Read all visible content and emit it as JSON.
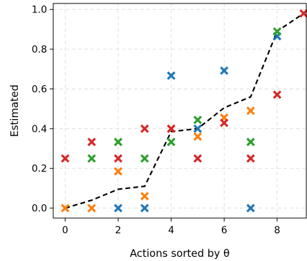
{
  "chart_data": {
    "type": "scatter",
    "title": "",
    "xlabel": "Actions sorted by θ",
    "ylabel": "Estimated",
    "xlim": [
      -0.45,
      9.1
    ],
    "ylim": [
      -0.05,
      1.03
    ],
    "xticks": [
      0,
      2,
      4,
      6,
      8
    ],
    "yticks": [
      0.0,
      0.2,
      0.4,
      0.6,
      0.8,
      1.0
    ],
    "xtick_labels": [
      "0",
      "2",
      "4",
      "6",
      "8"
    ],
    "ytick_labels": [
      "0.0",
      "0.2",
      "0.4",
      "0.6",
      "0.8",
      "1.0"
    ],
    "grid": true,
    "line": {
      "style": "dashed",
      "color": "#000000",
      "x": [
        0,
        1,
        2,
        3,
        4,
        5,
        6,
        7,
        8,
        9
      ],
      "y": [
        0.0,
        0.04,
        0.095,
        0.11,
        0.385,
        0.4,
        0.505,
        0.56,
        0.89,
        0.98
      ]
    },
    "series": [
      {
        "color": "#1f77b4",
        "marker": "x",
        "x": [
          2,
          3,
          4,
          5,
          6,
          7,
          8
        ],
        "y": [
          0.0,
          0.0,
          0.667,
          0.4,
          0.692,
          0.0,
          0.865
        ]
      },
      {
        "color": "#ff7f0e",
        "marker": "x",
        "x": [
          0,
          1,
          2,
          3,
          4,
          5,
          6,
          7
        ],
        "y": [
          0.0,
          0.0,
          0.185,
          0.06,
          0.4,
          0.36,
          0.455,
          0.49
        ]
      },
      {
        "color": "#2ca02c",
        "marker": "x",
        "x": [
          1,
          2,
          3,
          4,
          5,
          7,
          8
        ],
        "y": [
          0.25,
          0.333,
          0.25,
          0.333,
          0.444,
          0.333,
          0.889
        ]
      },
      {
        "color": "#d62728",
        "marker": "x",
        "x": [
          0,
          1,
          2,
          3,
          4,
          5,
          6,
          7,
          8,
          9
        ],
        "y": [
          0.25,
          0.333,
          0.25,
          0.4,
          0.4,
          0.25,
          0.429,
          0.25,
          0.571,
          0.98
        ]
      }
    ]
  }
}
